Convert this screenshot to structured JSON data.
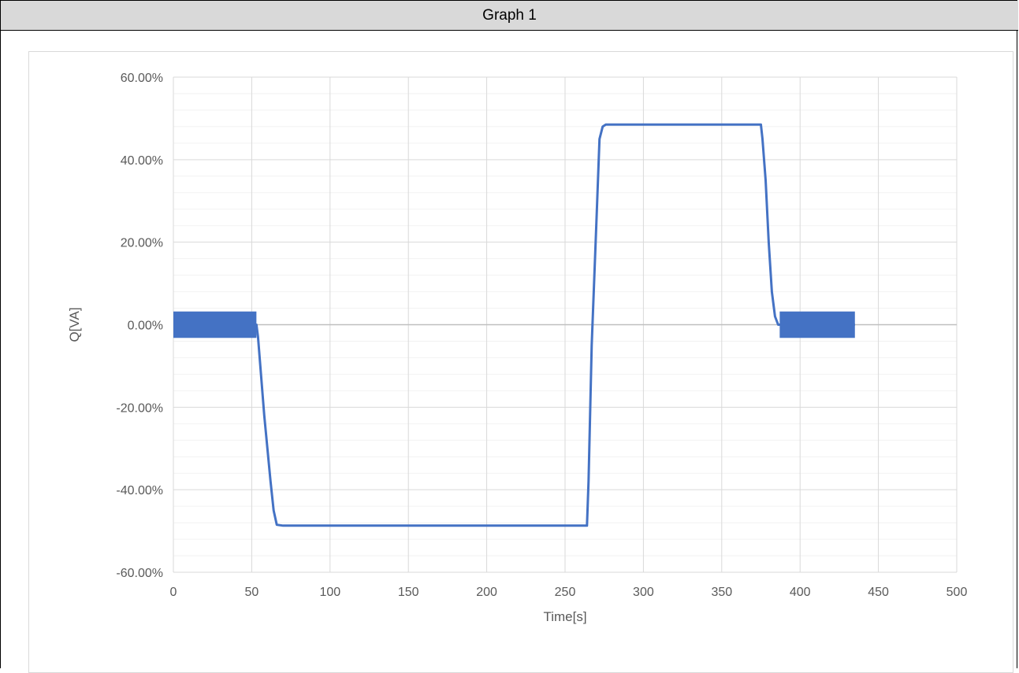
{
  "header": {
    "title": "Graph 1"
  },
  "chart_data": {
    "type": "line",
    "title": "",
    "xlabel": "Time[s]",
    "ylabel": "Q[VA]",
    "xlim": [
      0,
      500
    ],
    "ylim": [
      -60,
      60
    ],
    "x_ticks": [
      0,
      50,
      100,
      150,
      200,
      250,
      300,
      350,
      400,
      450,
      500
    ],
    "y_ticks": [
      60,
      40,
      20,
      0,
      -20,
      -40,
      -60
    ],
    "y_tick_labels": [
      "60.00%",
      "40.00%",
      "20.00%",
      "0.00%",
      "-20.00%",
      "-40.00%",
      "-60.00%"
    ],
    "grid": true,
    "legend": "none",
    "series_color": "#4472c4",
    "series": [
      {
        "x": [
          0,
          53,
          54,
          58,
          62,
          64,
          66,
          70,
          100,
          150,
          200,
          250,
          264,
          265,
          267,
          270,
          272,
          274,
          276,
          300,
          350,
          375,
          376,
          378,
          380,
          382,
          384,
          386,
          387,
          435
        ],
        "y": [
          0,
          0,
          -3,
          -22,
          -38,
          -45,
          -48.5,
          -48.7,
          -48.7,
          -48.7,
          -48.7,
          -48.7,
          -48.7,
          -38,
          -5,
          25,
          45,
          48,
          48.5,
          48.5,
          48.5,
          48.5,
          45,
          35,
          20,
          8,
          2,
          0,
          0,
          0
        ]
      }
    ],
    "noise_bands": [
      {
        "x_start": 0,
        "x_end": 53,
        "amplitude": 3.2
      },
      {
        "x_start": 387,
        "x_end": 435,
        "amplitude": 3.2
      }
    ]
  }
}
